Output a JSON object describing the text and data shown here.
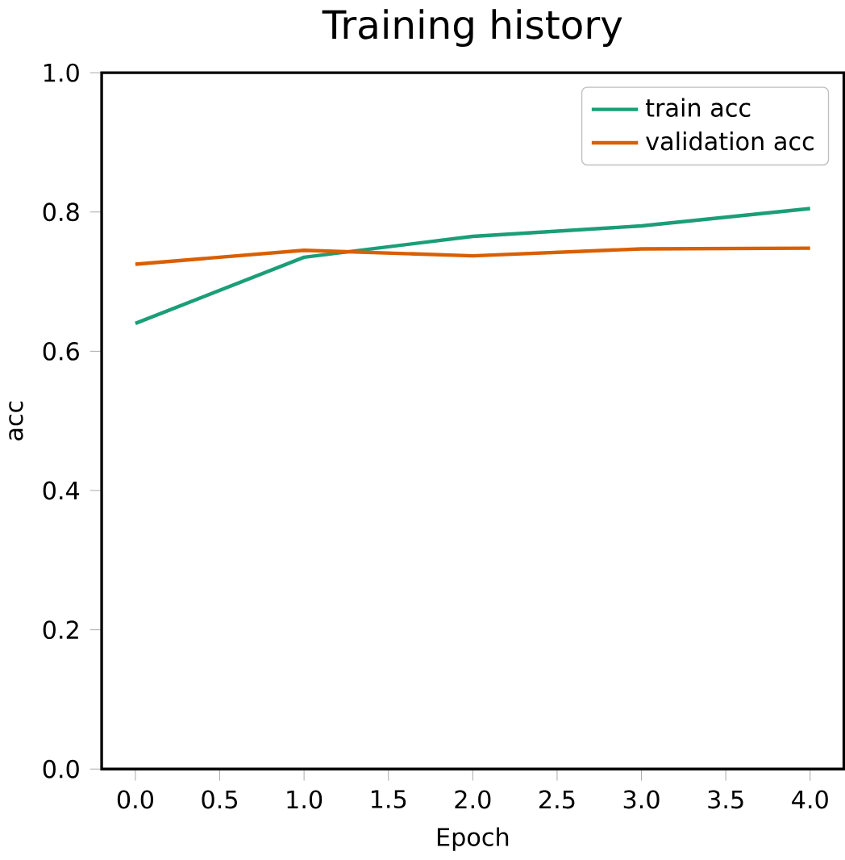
{
  "chart_data": {
    "type": "line",
    "title": "Training history",
    "xlabel": "Epoch",
    "ylabel": "acc",
    "x": [
      0,
      1,
      2,
      3,
      4
    ],
    "series": [
      {
        "name": "train acc",
        "color": "#1b9e77",
        "values": [
          0.64,
          0.735,
          0.765,
          0.78,
          0.805
        ]
      },
      {
        "name": "validation acc",
        "color": "#d95f02",
        "values": [
          0.725,
          0.745,
          0.737,
          0.747,
          0.748
        ]
      }
    ],
    "xlim": [
      -0.2,
      4.2
    ],
    "ylim": [
      0,
      1
    ],
    "xticks": [
      {
        "value": 0,
        "label": "0.0"
      },
      0.5,
      {
        "value": 1,
        "label": "1.0"
      },
      1.5,
      {
        "value": 2,
        "label": "2.0"
      },
      2.5,
      {
        "value": 3,
        "label": "3.0"
      },
      3.5,
      {
        "value": 4,
        "label": "4.0"
      }
    ],
    "yticks": [
      {
        "value": 0,
        "label": "0.0"
      },
      0.2,
      0.4,
      0.6,
      0.8,
      {
        "value": 1,
        "label": "1.0"
      }
    ],
    "legend": "top right",
    "grid": false,
    "marker": "none",
    "line_style": "solid"
  }
}
